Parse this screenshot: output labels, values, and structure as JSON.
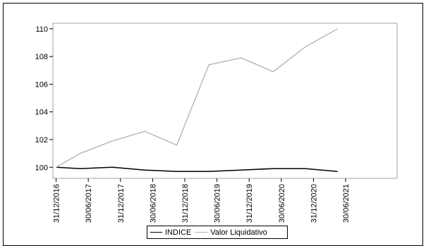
{
  "chart_data": {
    "type": "line",
    "title": "",
    "xlabel": "",
    "ylabel": "",
    "ylim": [
      99.2,
      110.4
    ],
    "yticks": [
      100,
      102,
      104,
      106,
      108,
      110
    ],
    "ytick_labels": [
      "100",
      "102",
      "104",
      "106",
      "108",
      "110"
    ],
    "categories": [
      "31/12/2016",
      "30/06/2017",
      "31/12/2017",
      "30/06/2018",
      "31/12/2018",
      "30/06/2019",
      "31/12/2019",
      "30/06/2020",
      "31/12/2020",
      "30/06/2021"
    ],
    "x": [
      0,
      1,
      2,
      3,
      4,
      5,
      6,
      7,
      8,
      9,
      10
    ],
    "grid": false,
    "legend_position": "bottom",
    "series": [
      {
        "name": "INDICE",
        "color": "#000000",
        "values": [
          100.0,
          99.9,
          100.0,
          99.8,
          99.7,
          99.7,
          99.8,
          99.9,
          99.9,
          99.7,
          null
        ]
      },
      {
        "name": "Valor Liquidativo",
        "color": "#b0b0b0",
        "values": [
          100.0,
          101.0,
          101.9,
          102.6,
          101.6,
          107.4,
          107.9,
          106.9,
          108.7,
          110.0,
          null
        ]
      }
    ]
  }
}
